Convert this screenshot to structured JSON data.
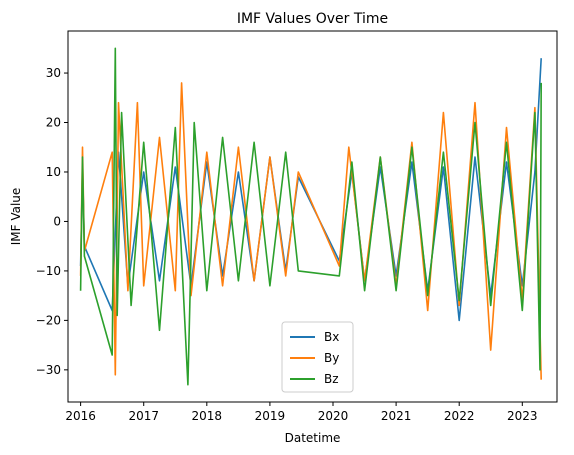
{
  "chart_data": {
    "type": "line",
    "title": "IMF Values Over Time",
    "xlabel": "Datetime",
    "ylabel": "IMF Value",
    "xlim": [
      2015.8,
      2023.55
    ],
    "ylim": [
      -36.5,
      38.5
    ],
    "x_ticks": [
      2016,
      2017,
      2018,
      2019,
      2020,
      2021,
      2022,
      2023
    ],
    "x_tick_labels": [
      "2016",
      "2017",
      "2018",
      "2019",
      "2020",
      "2021",
      "2022",
      "2023"
    ],
    "y_ticks": [
      -30,
      -20,
      -10,
      0,
      10,
      20,
      30
    ],
    "y_tick_labels": [
      "−30",
      "−20",
      "−10",
      "0",
      "10",
      "20",
      "30"
    ],
    "grid": false,
    "legend_position": "lower-center",
    "series": [
      {
        "name": "Bx",
        "color": "#1f77b4",
        "x": [
          2016.0,
          2016.03,
          2016.06,
          2016.5,
          2016.6,
          2016.75,
          2017.0,
          2017.25,
          2017.5,
          2017.75,
          2018.0,
          2018.25,
          2018.5,
          2018.75,
          2019.0,
          2019.25,
          2019.45,
          2020.1,
          2020.3,
          2020.5,
          2020.75,
          2021.0,
          2021.25,
          2021.5,
          2021.75,
          2022.0,
          2022.25,
          2022.5,
          2022.75,
          2023.0,
          2023.2,
          2023.3
        ],
        "values": [
          -9,
          11,
          -5,
          -18,
          14,
          -13,
          10,
          -12,
          11,
          -13,
          12,
          -11,
          10,
          -12,
          13,
          -10,
          9,
          -8,
          10,
          -12,
          11,
          -11,
          12,
          -14,
          11,
          -20,
          13,
          -15,
          12,
          -13,
          10,
          33
        ]
      },
      {
        "name": "By",
        "color": "#ff7f0e",
        "x": [
          2016.0,
          2016.03,
          2016.06,
          2016.5,
          2016.55,
          2016.6,
          2016.75,
          2016.9,
          2017.0,
          2017.25,
          2017.5,
          2017.6,
          2017.75,
          2018.0,
          2018.25,
          2018.5,
          2018.75,
          2019.0,
          2019.25,
          2019.45,
          2020.1,
          2020.25,
          2020.5,
          2020.75,
          2021.0,
          2021.25,
          2021.5,
          2021.75,
          2022.0,
          2022.25,
          2022.5,
          2022.75,
          2023.0,
          2023.2,
          2023.3
        ],
        "values": [
          -11,
          15,
          -6,
          14,
          -31,
          24,
          -14,
          24,
          -13,
          17,
          -14,
          28,
          -15,
          14,
          -13,
          15,
          -12,
          13,
          -11,
          10,
          -9,
          15,
          -12,
          13,
          -13,
          16,
          -18,
          22,
          -17,
          24,
          -26,
          19,
          -16,
          23,
          -32
        ]
      },
      {
        "name": "Bz",
        "color": "#2ca02c",
        "x": [
          2016.0,
          2016.03,
          2016.06,
          2016.5,
          2016.55,
          2016.58,
          2016.65,
          2016.8,
          2017.0,
          2017.25,
          2017.5,
          2017.7,
          2017.8,
          2018.0,
          2018.25,
          2018.5,
          2018.75,
          2019.0,
          2019.25,
          2019.45,
          2020.1,
          2020.3,
          2020.5,
          2020.75,
          2021.0,
          2021.25,
          2021.5,
          2021.75,
          2022.0,
          2022.25,
          2022.5,
          2022.75,
          2023.0,
          2023.2,
          2023.28,
          2023.3
        ],
        "values": [
          -14,
          13,
          -7,
          -27,
          35,
          -19,
          22,
          -17,
          16,
          -22,
          19,
          -33,
          20,
          -14,
          17,
          -12,
          16,
          -13,
          14,
          -10,
          -11,
          12,
          -14,
          13,
          -14,
          15,
          -15,
          14,
          -16,
          20,
          -17,
          16,
          -18,
          22,
          -30,
          28
        ]
      }
    ]
  }
}
